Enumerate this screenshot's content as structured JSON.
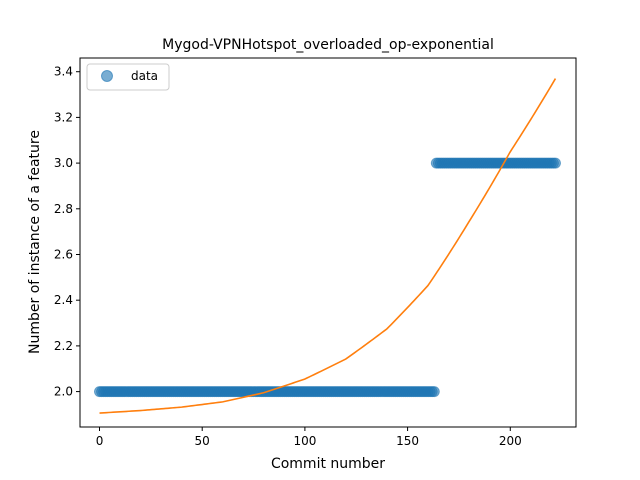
{
  "chart_data": {
    "type": "scatter",
    "title": "Mygod-VPNHotspot_overloaded_op-exponential",
    "xlabel": "Commit number",
    "ylabel": "Number of instance of a feature",
    "xlim": [
      -9.5,
      232
    ],
    "ylim": [
      1.845,
      3.46
    ],
    "xticks": [
      0,
      50,
      100,
      150,
      200
    ],
    "yticks": [
      2.0,
      2.2,
      2.4,
      2.6,
      2.8,
      3.0,
      3.2,
      3.4
    ],
    "ytick_labels": [
      "2.0",
      "2.2",
      "2.4",
      "2.6",
      "2.8",
      "3.0",
      "3.2",
      "3.4"
    ],
    "grid": false,
    "legend": {
      "position": "top-left",
      "entries": [
        "data"
      ]
    },
    "series": [
      {
        "name": "data",
        "kind": "points",
        "color": "#1f77b4",
        "segments": [
          {
            "x_start": 0,
            "x_end": 163,
            "y": 2.0
          },
          {
            "x_start": 164,
            "x_end": 222,
            "y": 3.0
          }
        ]
      },
      {
        "kind": "fit-curve",
        "color": "#ff7f0e",
        "model": "exponential",
        "x_range": [
          0,
          222
        ],
        "x": [
          0,
          20,
          40,
          60,
          80,
          100,
          120,
          140,
          160,
          180,
          200,
          222
        ],
        "y": [
          1.906,
          1.917,
          1.932,
          1.955,
          1.995,
          2.055,
          2.143,
          2.275,
          2.465,
          2.745,
          3.05,
          3.37
        ]
      }
    ]
  }
}
